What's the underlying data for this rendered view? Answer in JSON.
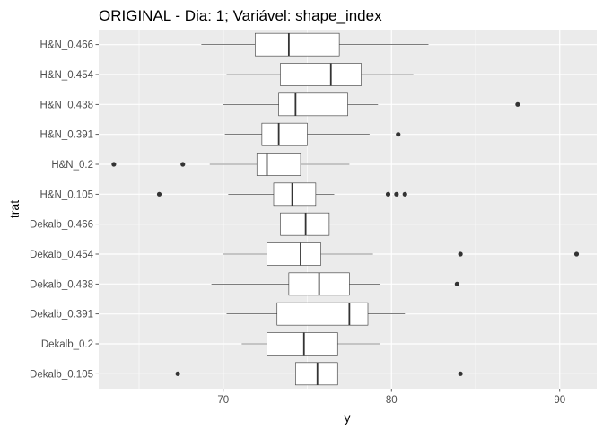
{
  "chart_data": {
    "type": "boxplot",
    "orientation": "horizontal",
    "title": "ORIGINAL - Dia: 1; Variável: shape_index",
    "xlabel": "y",
    "ylabel": "trat",
    "xlim": [
      62.6,
      92.2
    ],
    "xticks": [
      70,
      80,
      90
    ],
    "xtick_labels": [
      "70",
      "80",
      "90"
    ],
    "grid": true,
    "background": "#ebebeb",
    "grid_color": "#ffffff",
    "box_fill": "#ffffff",
    "line_color": "#333333",
    "categories": [
      "H&N_0.466",
      "H&N_0.454",
      "H&N_0.438",
      "H&N_0.391",
      "H&N_0.2",
      "H&N_0.105",
      "Dekalb_0.466",
      "Dekalb_0.454",
      "Dekalb_0.438",
      "Dekalb_0.391",
      "Dekalb_0.2",
      "Dekalb_0.105"
    ],
    "boxes": [
      {
        "min": 68.7,
        "q1": 71.9,
        "median": 73.9,
        "q3": 76.9,
        "max": 82.2,
        "outliers": []
      },
      {
        "min": 70.2,
        "q1": 73.4,
        "median": 76.4,
        "q3": 78.2,
        "max": 81.3,
        "outliers": []
      },
      {
        "min": 70.0,
        "q1": 73.3,
        "median": 74.3,
        "q3": 77.4,
        "max": 79.2,
        "outliers": [
          87.5
        ]
      },
      {
        "min": 70.1,
        "q1": 72.3,
        "median": 73.3,
        "q3": 75.0,
        "max": 78.7,
        "outliers": [
          80.4
        ]
      },
      {
        "min": 69.2,
        "q1": 72.0,
        "median": 72.6,
        "q3": 74.6,
        "max": 77.5,
        "outliers": [
          63.5,
          67.6
        ]
      },
      {
        "min": 70.3,
        "q1": 73.0,
        "median": 74.1,
        "q3": 75.5,
        "max": 76.6,
        "outliers": [
          66.2,
          79.8,
          80.3,
          80.8
        ]
      },
      {
        "min": 69.8,
        "q1": 73.4,
        "median": 74.9,
        "q3": 76.3,
        "max": 79.7,
        "outliers": []
      },
      {
        "min": 70.0,
        "q1": 72.6,
        "median": 74.6,
        "q3": 75.8,
        "max": 78.9,
        "outliers": [
          84.1,
          91.0
        ]
      },
      {
        "min": 69.3,
        "q1": 73.9,
        "median": 75.7,
        "q3": 77.5,
        "max": 79.3,
        "outliers": [
          83.9
        ]
      },
      {
        "min": 70.2,
        "q1": 73.2,
        "median": 77.5,
        "q3": 78.6,
        "max": 80.8,
        "outliers": []
      },
      {
        "min": 71.1,
        "q1": 72.6,
        "median": 74.8,
        "q3": 76.8,
        "max": 79.3,
        "outliers": []
      },
      {
        "min": 71.3,
        "q1": 74.3,
        "median": 75.6,
        "q3": 76.8,
        "max": 78.5,
        "outliers": [
          67.3,
          84.1
        ]
      }
    ]
  }
}
